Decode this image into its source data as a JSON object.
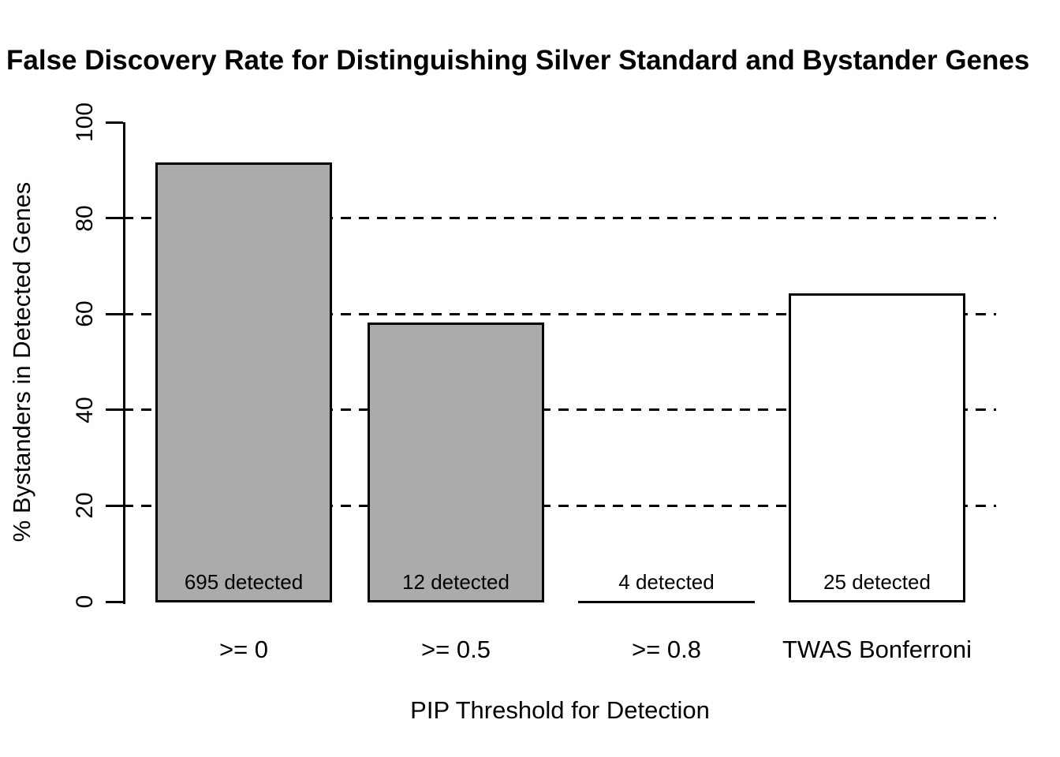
{
  "chart_data": {
    "type": "bar",
    "title": "False Discovery Rate for Distinguishing Silver Standard and Bystander Genes",
    "xlabel": "PIP Threshold for Detection",
    "ylabel": "% Bystanders in Detected Genes",
    "categories": [
      ">= 0",
      ">= 0.5",
      ">= 0.8",
      "TWAS Bonferroni"
    ],
    "values": [
      91.3,
      58,
      0,
      64
    ],
    "bar_labels": [
      "695 detected",
      "12 detected",
      "4 detected",
      "25 detected"
    ],
    "bar_colors": [
      "#ABABAB",
      "#ABABAB",
      "#ABABAB",
      "#FFFFFF"
    ],
    "border_color": "#000000",
    "ylim": [
      0,
      100
    ],
    "yticks": [
      0,
      20,
      40,
      60,
      80,
      100
    ],
    "gridlines_at": [
      20,
      40,
      60,
      80
    ],
    "gridline_style": "dashed",
    "legend": "none",
    "background_color": "#FFFFFF"
  }
}
